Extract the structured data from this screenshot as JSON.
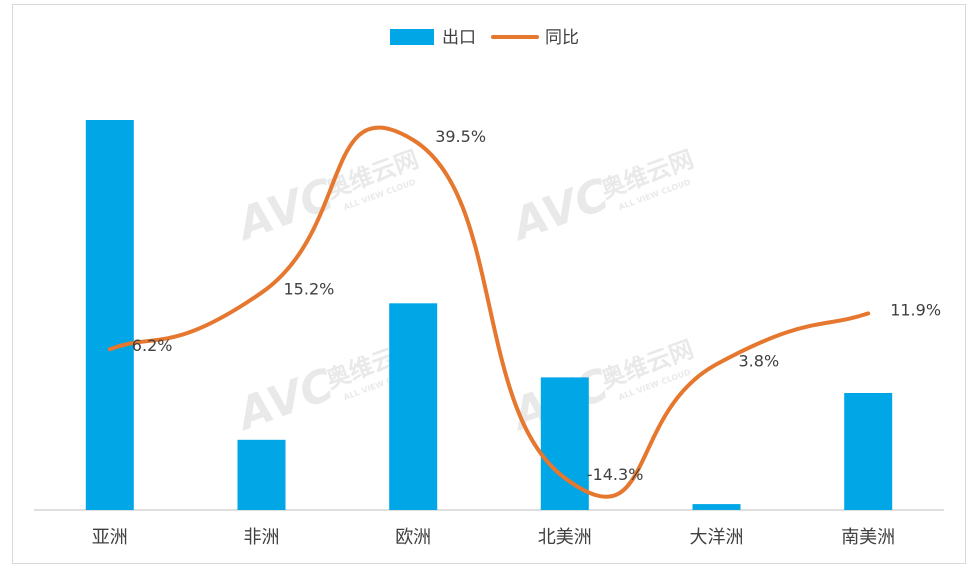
{
  "chart_data": {
    "type": "bar",
    "categories": [
      "亚洲",
      "非洲",
      "欧洲",
      "北美洲",
      "大洋洲",
      "南美洲"
    ],
    "series": [
      {
        "name": "出口",
        "type": "bar",
        "values": [
          100,
          18,
          53,
          34,
          1.5,
          30
        ],
        "color": "#00a6e6"
      },
      {
        "name": "同比",
        "type": "line",
        "values": [
          6.2,
          15.2,
          39.5,
          -14.3,
          3.8,
          11.9
        ],
        "labels": [
          "6.2%",
          "15.2%",
          "39.5%",
          "-14.3%",
          "3.8%",
          "11.9%"
        ],
        "color": "#e6772e"
      }
    ],
    "legend": "top-center",
    "grid": false
  },
  "watermark": {
    "text": "AVC",
    "cn": "奥维云网",
    "en": "ALL VIEW CLOUD"
  }
}
